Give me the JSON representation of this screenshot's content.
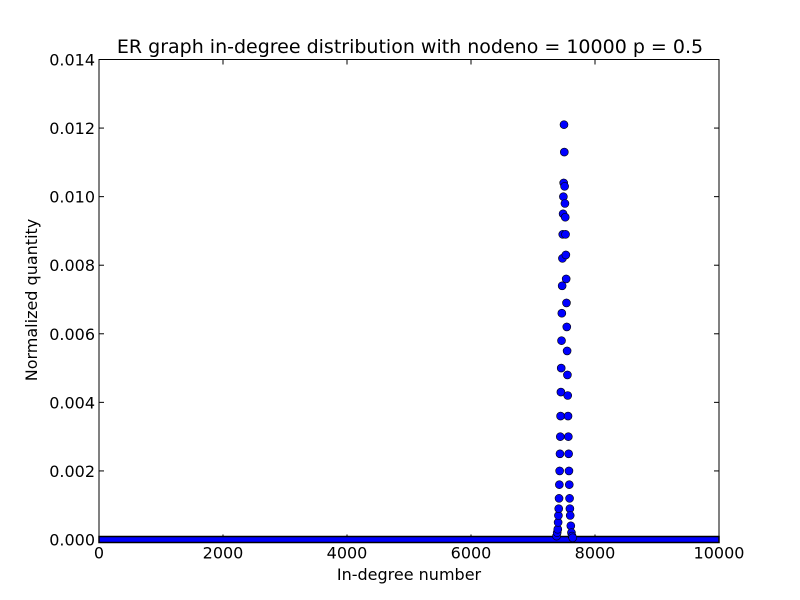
{
  "chart_data": {
    "type": "scatter",
    "title": "ER graph in-degree distribution with nodeno = 10000 p = 0.5",
    "xlabel": "In-degree number",
    "ylabel": "Normalized quantity",
    "xlim": [
      0,
      10000
    ],
    "ylim": [
      0,
      0.014
    ],
    "x_ticks": [
      0,
      2000,
      4000,
      6000,
      8000,
      10000
    ],
    "x_tick_labels": [
      "0",
      "2000",
      "4000",
      "6000",
      "8000",
      "10000"
    ],
    "y_ticks": [
      0,
      0.002,
      0.004,
      0.006,
      0.008,
      0.01,
      0.012,
      0.014
    ],
    "y_tick_labels": [
      "0.000",
      "0.002",
      "0.004",
      "0.006",
      "0.008",
      "0.010",
      "0.012",
      "0.014"
    ],
    "grid": false,
    "legend": "none",
    "marker_color": "#0000ff",
    "marker_edge_color": "#000000",
    "baseline": {
      "x_start": 0,
      "x_end": 10000,
      "y": 0
    },
    "series": [
      {
        "x": [
          7380,
          7390,
          7400,
          7405,
          7410,
          7415,
          7420,
          7425,
          7430,
          7435,
          7440,
          7445,
          7450,
          7455,
          7460,
          7465,
          7470,
          7475,
          7480,
          7485,
          7490,
          7495,
          7500,
          7505,
          7510,
          7515,
          7520,
          7525,
          7530,
          7535,
          7540,
          7545,
          7550,
          7555,
          7560,
          7565,
          7570,
          7575,
          7580,
          7585,
          7590,
          7595,
          7600,
          7610,
          7620,
          7630,
          7640
        ],
        "y": [
          0.0001,
          0.0002,
          0.0003,
          0.0005,
          0.0007,
          0.0009,
          0.0012,
          0.0016,
          0.002,
          0.0025,
          0.003,
          0.0036,
          0.0043,
          0.005,
          0.0058,
          0.0066,
          0.0074,
          0.0082,
          0.0089,
          0.0095,
          0.01,
          0.0104,
          0.0121,
          0.0113,
          0.0103,
          0.0098,
          0.0094,
          0.0089,
          0.0083,
          0.0076,
          0.0069,
          0.0062,
          0.0055,
          0.0048,
          0.0042,
          0.0036,
          0.003,
          0.0025,
          0.002,
          0.0016,
          0.0012,
          0.0009,
          0.0007,
          0.0004,
          0.0002,
          0.0001,
          5e-05
        ]
      }
    ]
  }
}
